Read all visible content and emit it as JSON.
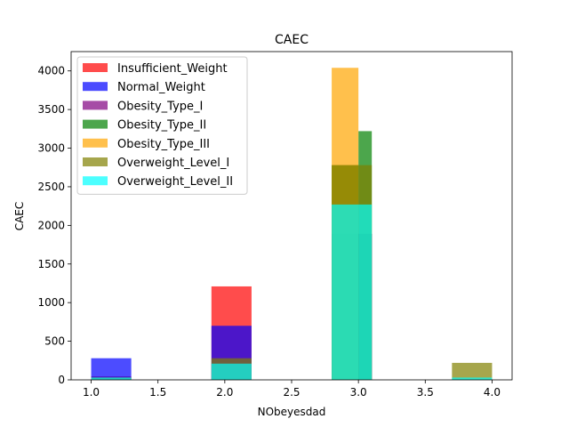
{
  "chart_data": {
    "type": "histogram",
    "title": "CAEC",
    "xlabel": "NObeyesdad",
    "ylabel": "CAEC",
    "xlim": [
      0.85,
      4.15
    ],
    "ylim": [
      0,
      4250
    ],
    "xticks": [
      "1.0",
      "1.5",
      "2.0",
      "2.5",
      "3.0",
      "3.5",
      "4.0"
    ],
    "yticks": [
      "0",
      "500",
      "1000",
      "1500",
      "2000",
      "2500",
      "3000",
      "3500",
      "4000"
    ],
    "grid": false,
    "legend_position": "upper-left",
    "bar_opacity": 0.7,
    "bins": [
      [
        1.0,
        1.3
      ],
      [
        1.9,
        2.2
      ],
      [
        2.8,
        3.0
      ],
      [
        3.0,
        3.1
      ],
      [
        3.7,
        4.0
      ]
    ],
    "series": [
      {
        "name": "Insufficient_Weight",
        "color": "#ff0000",
        "values": [
          45,
          1210,
          1890,
          1890,
          0
        ]
      },
      {
        "name": "Normal_Weight",
        "color": "#0000ff",
        "values": [
          280,
          700,
          1890,
          1890,
          0
        ]
      },
      {
        "name": "Obesity_Type_I",
        "color": "#800080",
        "values": [
          0,
          210,
          1890,
          1890,
          0
        ]
      },
      {
        "name": "Obesity_Type_II",
        "color": "#008000",
        "values": [
          0,
          0,
          2780,
          3220,
          0
        ]
      },
      {
        "name": "Obesity_Type_III",
        "color": "#ffa500",
        "values": [
          0,
          0,
          4040,
          0,
          0
        ]
      },
      {
        "name": "Overweight_Level_I",
        "color": "#808000",
        "values": [
          30,
          280,
          2780,
          2780,
          220
        ]
      },
      {
        "name": "Overweight_Level_II",
        "color": "#00ffff",
        "values": [
          30,
          210,
          2270,
          2270,
          30
        ]
      }
    ]
  }
}
